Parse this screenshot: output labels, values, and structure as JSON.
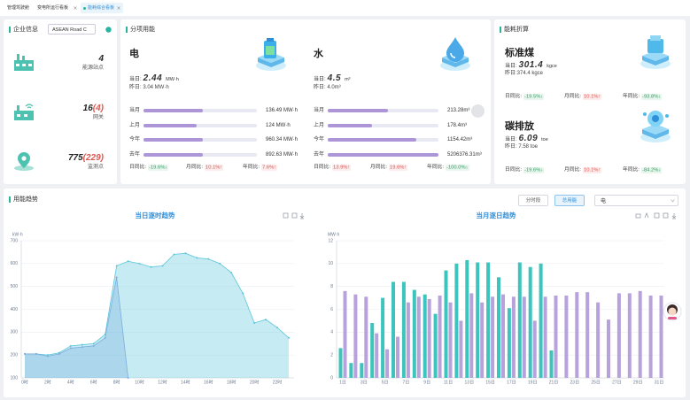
{
  "tabs": [
    "管理驾驶舱",
    "变电所运行看板",
    "能耗综合看板"
  ],
  "company": {
    "title": "企业信息",
    "site": "ASEAN Road C",
    "stats": [
      {
        "value": 4,
        "label": "能源站点"
      },
      {
        "value": 16,
        "alert": "(4)",
        "label": "网关"
      },
      {
        "value": 775,
        "alert": "(229)",
        "label": "监测点"
      }
    ]
  },
  "energy": {
    "title": "分项用能",
    "items": [
      {
        "name": "电",
        "today_label": "当日:",
        "today": "2.44",
        "today_unit": "MW·h",
        "yesterday": "昨日: 3.04 MW·h",
        "rows": [
          {
            "label": "当月",
            "value": "136.49 MW·h"
          },
          {
            "label": "上月",
            "value": "124 MW·h"
          },
          {
            "label": "今年",
            "value": "960.34 MW·h"
          },
          {
            "label": "去年",
            "value": "892.63 MW·h"
          }
        ],
        "compare": [
          {
            "label": "日同比:",
            "value": "-19.6%↓",
            "trend": "down"
          },
          {
            "label": "月同比:",
            "value": "10.1%↑",
            "trend": "up"
          },
          {
            "label": "年同比:",
            "value": "7.6%↑",
            "trend": "up"
          }
        ]
      },
      {
        "name": "水",
        "today_label": "当日:",
        "today": "4.5",
        "today_unit": "m³",
        "yesterday": "昨日: 4.0m³",
        "rows": [
          {
            "label": "当月",
            "value": "213.28m³"
          },
          {
            "label": "上月",
            "value": "178.4m³"
          },
          {
            "label": "今年",
            "value": "1154.42m³"
          },
          {
            "label": "去年",
            "value": "5206376.31m³"
          }
        ],
        "compare": [
          {
            "label": "日同比:",
            "value": "13.9%↑",
            "trend": "up"
          },
          {
            "label": "月同比:",
            "value": "19.6%↑",
            "trend": "up"
          },
          {
            "label": "年同比:",
            "value": "-100.0%↓",
            "trend": "down"
          }
        ]
      }
    ]
  },
  "conversion": {
    "title": "能耗折算",
    "items": [
      {
        "name": "标准煤",
        "today_label": "当日:",
        "today": "301.4",
        "today_unit": "kgce",
        "yesterday": "昨日:374.4 kgce",
        "compare": [
          {
            "label": "日同比:",
            "value": "-19.5%↓",
            "trend": "down"
          },
          {
            "label": "月同比:",
            "value": "10.1%↑",
            "trend": "up"
          },
          {
            "label": "年同比:",
            "value": "-93.8%↓",
            "trend": "down"
          }
        ]
      },
      {
        "name": "碳排放",
        "today_label": "当日:",
        "today": "6.09",
        "today_unit": "toe",
        "yesterday": "昨日: 7.58 toe",
        "compare": [
          {
            "label": "日同比:",
            "value": "-19.6%↓",
            "trend": "down"
          },
          {
            "label": "月同比:",
            "value": "10.1%↑",
            "trend": "up"
          },
          {
            "label": "年同比:",
            "value": "-84.2%↓",
            "trend": "down"
          }
        ]
      }
    ]
  },
  "trend": {
    "title": "用能趋势",
    "buttons": [
      "分时段",
      "总用能"
    ],
    "select": "电"
  },
  "chart_data": [
    {
      "type": "area",
      "title": "当日逐时趋势",
      "y_unit": "kW·h",
      "categories": [
        "0时",
        null,
        "2时",
        null,
        "4时",
        null,
        "6时",
        null,
        "8时",
        null,
        "10时",
        null,
        "12时",
        null,
        "14时",
        null,
        "16时",
        null,
        "18时",
        null,
        "20时",
        null,
        "22时",
        null
      ],
      "ylim": [
        100,
        700
      ],
      "yticks": [
        100,
        200,
        300,
        400,
        500,
        600,
        700
      ],
      "grid": true,
      "series": [
        {
          "color": "#5cc6da",
          "values": [
            205,
            205,
            200,
            210,
            240,
            245,
            250,
            290,
            590,
            610,
            600,
            585,
            590,
            640,
            645,
            625,
            620,
            600,
            560,
            470,
            340,
            355,
            320,
            275
          ]
        },
        {
          "color": "#7aaee0",
          "values": [
            205,
            205,
            195,
            205,
            230,
            235,
            240,
            275,
            540,
            100,
            null,
            null,
            null,
            null,
            null,
            null,
            null,
            null,
            null,
            null,
            null,
            null,
            null,
            null
          ]
        }
      ]
    },
    {
      "type": "bar",
      "title": "当月逐日趋势",
      "y_unit": "MW·h",
      "categories": [
        "1日",
        null,
        "3日",
        null,
        "5日",
        null,
        "7日",
        null,
        "9日",
        null,
        "11日",
        null,
        "13日",
        null,
        "15日",
        null,
        "17日",
        null,
        "19日",
        null,
        "21日",
        null,
        "23日",
        null,
        "25日",
        null,
        "27日",
        null,
        "29日",
        null,
        "31日"
      ],
      "ylim": [
        0,
        12
      ],
      "yticks": [
        0,
        2,
        4,
        6,
        8,
        10,
        12
      ],
      "grid": true,
      "series": [
        {
          "color": "#3cc4bd",
          "values": [
            2.6,
            1.3,
            1.3,
            4.8,
            7.0,
            8.4,
            8.4,
            7.7,
            7.3,
            5.6,
            9.4,
            10.0,
            10.3,
            10.1,
            10.1,
            8.8,
            6.1,
            10.1,
            9.7,
            10.0,
            2.4,
            null,
            null,
            null,
            null,
            null,
            null,
            null,
            null,
            null,
            null
          ]
        },
        {
          "color": "#b7a2dc",
          "values": [
            7.6,
            7.3,
            7.1,
            3.9,
            2.5,
            3.6,
            6.6,
            7.1,
            6.9,
            7.2,
            6.6,
            5.0,
            7.4,
            6.6,
            7.1,
            7.3,
            7.1,
            7.1,
            5.0,
            7.1,
            7.2,
            7.2,
            7.5,
            7.5,
            6.6,
            5.1,
            7.4,
            7.4,
            7.6,
            7.2,
            7.2
          ]
        }
      ]
    }
  ]
}
